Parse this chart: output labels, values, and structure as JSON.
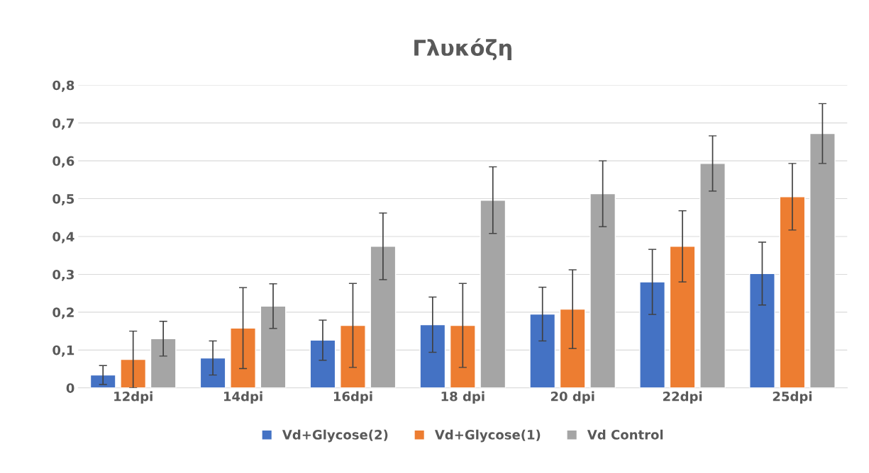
{
  "chart_data": {
    "type": "bar",
    "title": "Γλυκόζη",
    "categories": [
      "12dpi",
      "14dpi",
      "16dpi",
      "18 dpi",
      "20 dpi",
      "22dpi",
      "25dpi"
    ],
    "series": [
      {
        "name": "Vd+Glycose(2)",
        "color": "#4472c4",
        "values": [
          0.034,
          0.079,
          0.126,
          0.167,
          0.195,
          0.28,
          0.302
        ],
        "errors": [
          0.025,
          0.045,
          0.053,
          0.073,
          0.071,
          0.086,
          0.083
        ]
      },
      {
        "name": "Vd+Glycose(1)",
        "color": "#ed7d31",
        "values": [
          0.075,
          0.158,
          0.165,
          0.165,
          0.208,
          0.374,
          0.505
        ],
        "errors": [
          0.075,
          0.107,
          0.111,
          0.111,
          0.104,
          0.094,
          0.088
        ]
      },
      {
        "name": "Vd Control",
        "color": "#a5a5a5",
        "values": [
          0.13,
          0.216,
          0.374,
          0.496,
          0.513,
          0.593,
          0.672
        ],
        "errors": [
          0.046,
          0.059,
          0.088,
          0.088,
          0.087,
          0.073,
          0.079
        ]
      }
    ],
    "ylim": [
      0,
      0.8
    ],
    "yticks": [
      0,
      {
        "value": 0.1,
        "label": "0,1"
      },
      {
        "value": 0.2,
        "label": "0,2"
      },
      {
        "value": 0.3,
        "label": "0,3"
      },
      {
        "value": 0.4,
        "label": "0,4"
      },
      {
        "value": 0.5,
        "label": "0,5"
      },
      {
        "value": 0.6,
        "label": "0,6"
      },
      {
        "value": 0.7,
        "label": "0,7"
      },
      {
        "value": 0.8,
        "label": "0,8"
      }
    ],
    "grid": "y",
    "legend": "bottom"
  }
}
